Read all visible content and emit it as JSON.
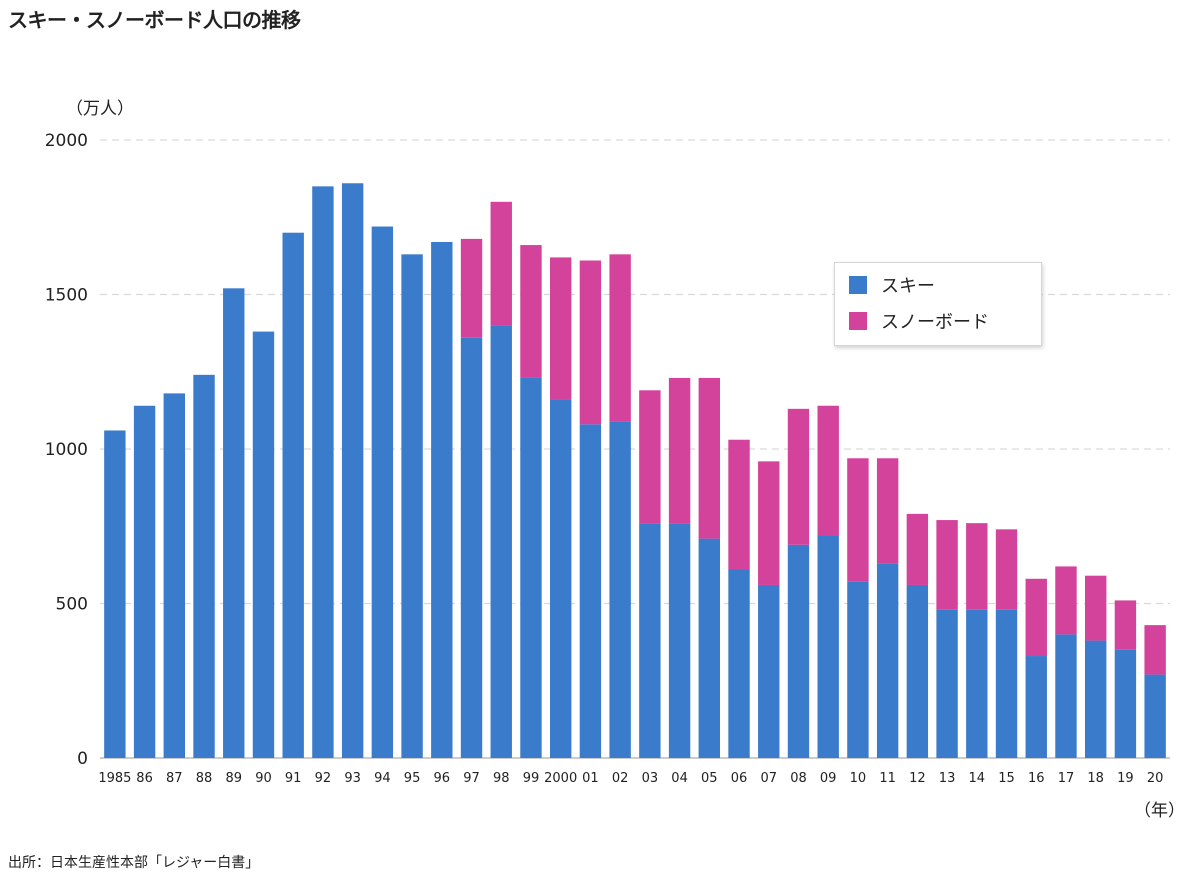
{
  "page": {
    "title": "スキー・スノーボード人口の推移",
    "source": "出所：日本生産性本部「レジャー白書」"
  },
  "chart_data": {
    "type": "bar",
    "stacked": true,
    "title": "スキー・スノーボード人口の推移",
    "ylabel": "（万人）",
    "xlabel": "（年）",
    "ylim": [
      0,
      2000
    ],
    "yticks": [
      0,
      500,
      1000,
      1500,
      2000
    ],
    "grid": true,
    "legend_position": "right",
    "categories": [
      "1985",
      "86",
      "87",
      "88",
      "89",
      "90",
      "91",
      "92",
      "93",
      "94",
      "95",
      "96",
      "97",
      "98",
      "99",
      "2000",
      "01",
      "02",
      "03",
      "04",
      "05",
      "06",
      "07",
      "08",
      "09",
      "10",
      "11",
      "12",
      "13",
      "14",
      "15",
      "16",
      "17",
      "18",
      "19",
      "20"
    ],
    "series": [
      {
        "name": "スキー",
        "color": "#3a7ccb",
        "values": [
          1060,
          1140,
          1180,
          1240,
          1520,
          1380,
          1700,
          1850,
          1860,
          1720,
          1630,
          1670,
          1360,
          1400,
          1230,
          1160,
          1080,
          1090,
          760,
          760,
          710,
          610,
          560,
          690,
          720,
          570,
          630,
          560,
          480,
          480,
          480,
          330,
          400,
          380,
          350,
          270
        ]
      },
      {
        "name": "スノーボード",
        "color": "#d3429b",
        "values": [
          0,
          0,
          0,
          0,
          0,
          0,
          0,
          0,
          0,
          0,
          0,
          0,
          320,
          400,
          430,
          460,
          530,
          540,
          430,
          470,
          520,
          420,
          400,
          440,
          420,
          400,
          340,
          230,
          290,
          280,
          260,
          250,
          220,
          210,
          160,
          160
        ]
      }
    ]
  },
  "colors": {
    "grid": "#d9d9d9",
    "axis": "#999999"
  }
}
